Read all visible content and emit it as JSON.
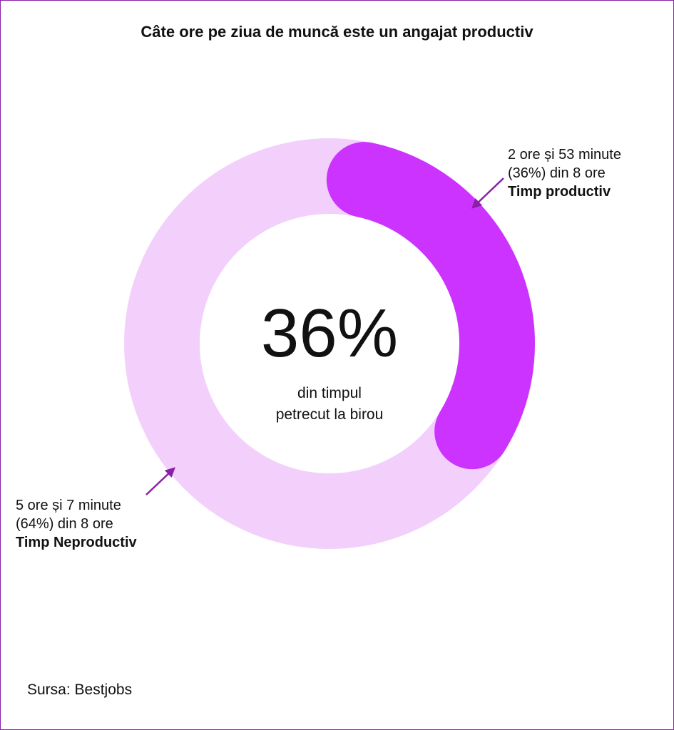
{
  "title": "Câte ore pe ziua de muncă este un angajat productiv",
  "center": {
    "value": "36%",
    "line1": "din timpul",
    "line2": "petrecut la birou"
  },
  "annotations": {
    "productive": {
      "line1": "2 ore și 53 minute",
      "line2": "(36%) din 8 ore",
      "label": "Timp productiv"
    },
    "unproductive": {
      "line1": "5 ore și 7 minute",
      "line2": "(64%) din 8 ore",
      "label": "Timp Neproductiv"
    }
  },
  "source": "Sursa: Bestjobs",
  "colors": {
    "productive": "#cc33ff",
    "unproductive": "#f2d0fb",
    "arrow": "#8a1fa8",
    "text": "#111111"
  },
  "chart_data": {
    "type": "pie",
    "variant": "donut",
    "title": "Câte ore pe ziua de muncă este un angajat productiv",
    "categories": [
      "Timp productiv",
      "Timp Neproductiv"
    ],
    "values": [
      36,
      64
    ],
    "unit": "%"
  }
}
